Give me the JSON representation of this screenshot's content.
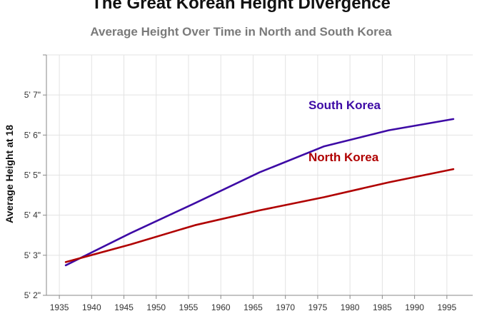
{
  "chart_data": {
    "type": "line",
    "title": "The Great Korean Height Divergence",
    "subtitle": "Average Height Over Time in North and South Korea",
    "xlabel": "",
    "ylabel": "Average Height at 18",
    "xlim": [
      1933,
      1999
    ],
    "ylim": [
      62,
      68
    ],
    "x_ticks": [
      1935,
      1940,
      1945,
      1950,
      1955,
      1960,
      1965,
      1970,
      1975,
      1980,
      1985,
      1990,
      1995
    ],
    "x_tick_labels": [
      "1935",
      "1940",
      "1945",
      "1950",
      "1955",
      "1960",
      "1965",
      "1970",
      "1975",
      "1980",
      "1985",
      "1990",
      "1995"
    ],
    "y_ticks": [
      62,
      63,
      64,
      65,
      66,
      67
    ],
    "y_tick_labels": [
      "5' 2\"",
      "5' 3\"",
      "5' 4\"",
      "5' 5\"",
      "5' 6\"",
      "5' 7\""
    ],
    "grid": true,
    "legend": "inline labels",
    "series": [
      {
        "name": "South Korea",
        "color": "#3d0aa5",
        "x": [
          1936,
          1946,
          1956,
          1966,
          1976,
          1986,
          1996
        ],
        "values": [
          62.75,
          63.55,
          64.3,
          65.07,
          65.72,
          66.12,
          66.4
        ]
      },
      {
        "name": "North Korea",
        "color": "#b00000",
        "x": [
          1936,
          1946,
          1956,
          1966,
          1976,
          1986,
          1996
        ],
        "values": [
          62.83,
          63.27,
          63.75,
          64.12,
          64.45,
          64.82,
          65.15
        ]
      }
    ]
  }
}
